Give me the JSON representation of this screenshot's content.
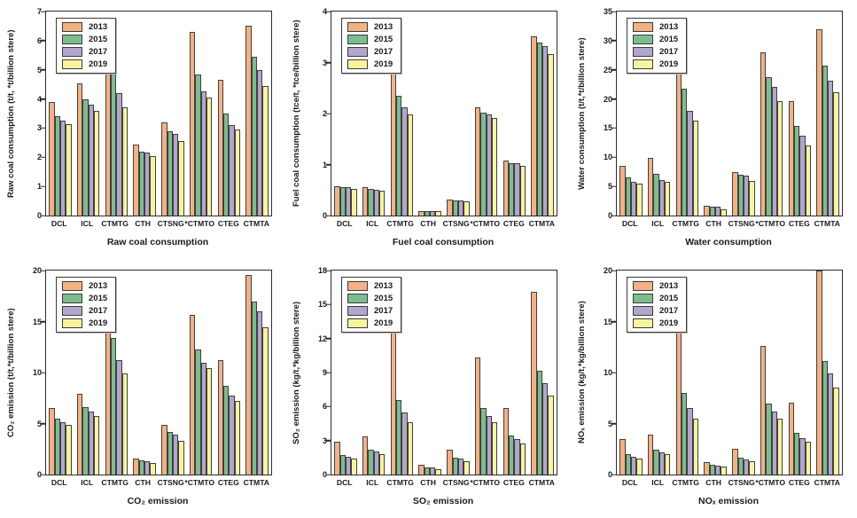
{
  "figure": {
    "background": "#ffffff",
    "rows": 2,
    "cols": 3
  },
  "palette": {
    "2013": "#F4B183",
    "2015": "#7CBD8E",
    "2017": "#B3A6CC",
    "2019": "#F8F49D",
    "bar_border": "#404040",
    "axis": "#2B2B2B"
  },
  "legend": {
    "entries": [
      "2013",
      "2015",
      "2017",
      "2019"
    ],
    "position": "top-left"
  },
  "chart_data": [
    {
      "type": "bar",
      "title": "Raw coal consumption",
      "ylabel": "Raw coal consumption (t/t, *t/billion stere)",
      "ylim": [
        0,
        7
      ],
      "ytick_step": 1,
      "grid": false,
      "legend_position": "top-left",
      "categories": [
        "DCL",
        "ICL",
        "CTMTG",
        "CTH",
        "CTSNG",
        "*CTMTO",
        "CTEG",
        "CTMTA"
      ],
      "series": [
        {
          "name": "2013",
          "values": [
            3.9,
            4.55,
            6.8,
            2.45,
            3.2,
            6.3,
            4.65,
            6.5
          ]
        },
        {
          "name": "2015",
          "values": [
            3.4,
            4.0,
            4.9,
            2.2,
            2.9,
            4.85,
            3.5,
            5.45
          ]
        },
        {
          "name": "2017",
          "values": [
            3.25,
            3.8,
            4.2,
            2.15,
            2.8,
            4.25,
            3.1,
            5.0
          ]
        },
        {
          "name": "2019",
          "values": [
            3.15,
            3.6,
            3.7,
            2.05,
            2.55,
            4.05,
            2.95,
            4.45
          ]
        }
      ]
    },
    {
      "type": "bar",
      "title": "Fuel coal consumption",
      "ylabel": "Fuel coal consumption (tce/t, *tce/billion stere)",
      "ylim": [
        0,
        4
      ],
      "ytick_step": 1,
      "grid": false,
      "legend_position": "top-left",
      "categories": [
        "DCL",
        "ICL",
        "CTMTG",
        "CTH",
        "CTSNG",
        "*CTMTO",
        "CTEG",
        "CTMTA"
      ],
      "series": [
        {
          "name": "2013",
          "values": [
            0.58,
            0.56,
            2.83,
            0.09,
            0.32,
            2.12,
            1.08,
            3.52
          ]
        },
        {
          "name": "2015",
          "values": [
            0.56,
            0.53,
            2.34,
            0.08,
            0.3,
            2.02,
            1.03,
            3.4
          ]
        },
        {
          "name": "2017",
          "values": [
            0.55,
            0.51,
            2.12,
            0.08,
            0.3,
            1.98,
            1.02,
            3.33
          ]
        },
        {
          "name": "2019",
          "values": [
            0.53,
            0.49,
            1.98,
            0.08,
            0.28,
            1.92,
            0.98,
            3.17
          ]
        }
      ]
    },
    {
      "type": "bar",
      "title": "Water consumption",
      "ylabel": "Water consumption (t/t,*t/billion stere)",
      "ylim": [
        0,
        35
      ],
      "ytick_step": 5,
      "grid": false,
      "legend_position": "top-left",
      "categories": [
        "DCL",
        "ICL",
        "CTMTG",
        "CTH",
        "CTSNG",
        "*CTMTO",
        "CTEG",
        "CTMTA"
      ],
      "series": [
        {
          "name": "2013",
          "values": [
            8.5,
            9.9,
            31.7,
            1.7,
            7.5,
            28.0,
            19.6,
            32.0
          ]
        },
        {
          "name": "2015",
          "values": [
            6.6,
            7.2,
            21.7,
            1.5,
            7.0,
            23.7,
            15.4,
            25.7
          ]
        },
        {
          "name": "2017",
          "values": [
            5.8,
            6.1,
            18.0,
            1.5,
            6.8,
            22.0,
            13.7,
            23.1
          ]
        },
        {
          "name": "2019",
          "values": [
            5.5,
            5.8,
            16.3,
            1.1,
            6.0,
            19.7,
            12.0,
            21.1
          ]
        }
      ]
    },
    {
      "type": "bar",
      "title": "CO₂ emission",
      "ylabel": "CO₂ emission (t/t,*t/billion stere)",
      "ylim": [
        0,
        20
      ],
      "ytick_step": 5,
      "grid": false,
      "legend_position": "top-left",
      "categories": [
        "DCL",
        "ICL",
        "CTMTG",
        "CTH",
        "CTSNG",
        "*CTMTO",
        "CTEG",
        "CTMTA"
      ],
      "series": [
        {
          "name": "2013",
          "values": [
            6.5,
            7.9,
            18.6,
            1.6,
            4.85,
            15.65,
            11.25,
            19.6
          ]
        },
        {
          "name": "2015",
          "values": [
            5.5,
            6.6,
            13.4,
            1.4,
            4.15,
            12.3,
            8.7,
            17.0
          ]
        },
        {
          "name": "2017",
          "values": [
            5.1,
            6.2,
            11.25,
            1.3,
            3.9,
            11.0,
            7.7,
            16.0
          ]
        },
        {
          "name": "2019",
          "values": [
            4.85,
            5.75,
            9.9,
            1.15,
            3.3,
            10.4,
            7.25,
            14.45
          ]
        }
      ]
    },
    {
      "type": "bar",
      "title": "SO₂ emission",
      "ylabel": "SO₂ emission (kg/t,*kg/billion stere)",
      "ylim": [
        0,
        18
      ],
      "ytick_step": 3,
      "grid": false,
      "legend_position": "top-left",
      "categories": [
        "DCL",
        "ICL",
        "CTMTG",
        "CTH",
        "CTSNG",
        "*CTMTO",
        "CTEG",
        "CTMTA"
      ],
      "series": [
        {
          "name": "2013",
          "values": [
            2.9,
            3.4,
            13.3,
            0.85,
            2.2,
            10.35,
            5.9,
            16.1
          ]
        },
        {
          "name": "2015",
          "values": [
            1.75,
            2.2,
            6.6,
            0.6,
            1.5,
            5.85,
            3.45,
            9.15
          ]
        },
        {
          "name": "2017",
          "values": [
            1.55,
            2.0,
            5.45,
            0.6,
            1.4,
            5.2,
            3.1,
            8.1
          ]
        },
        {
          "name": "2019",
          "values": [
            1.4,
            1.8,
            4.6,
            0.5,
            1.2,
            4.6,
            2.75,
            7.0
          ]
        }
      ]
    },
    {
      "type": "bar",
      "title": "NOₓ emission",
      "ylabel": "NOₓ emission (kg/t,*kg/billion stere)",
      "ylim": [
        0,
        20
      ],
      "ytick_step": 5,
      "grid": false,
      "legend_position": "top-left",
      "categories": [
        "DCL",
        "ICL",
        "CTMTG",
        "CTH",
        "CTSNG",
        "*CTMTO",
        "CTEG",
        "CTMTA"
      ],
      "series": [
        {
          "name": "2013",
          "values": [
            3.5,
            3.9,
            16.4,
            1.2,
            2.5,
            12.65,
            7.05,
            20.0
          ]
        },
        {
          "name": "2015",
          "values": [
            2.0,
            2.4,
            8.0,
            0.95,
            1.65,
            7.0,
            4.1,
            11.15
          ]
        },
        {
          "name": "2017",
          "values": [
            1.75,
            2.2,
            6.5,
            0.85,
            1.5,
            6.2,
            3.55,
            9.9
          ]
        },
        {
          "name": "2019",
          "values": [
            1.6,
            2.0,
            5.5,
            0.75,
            1.3,
            5.45,
            3.2,
            8.5
          ]
        }
      ]
    }
  ]
}
